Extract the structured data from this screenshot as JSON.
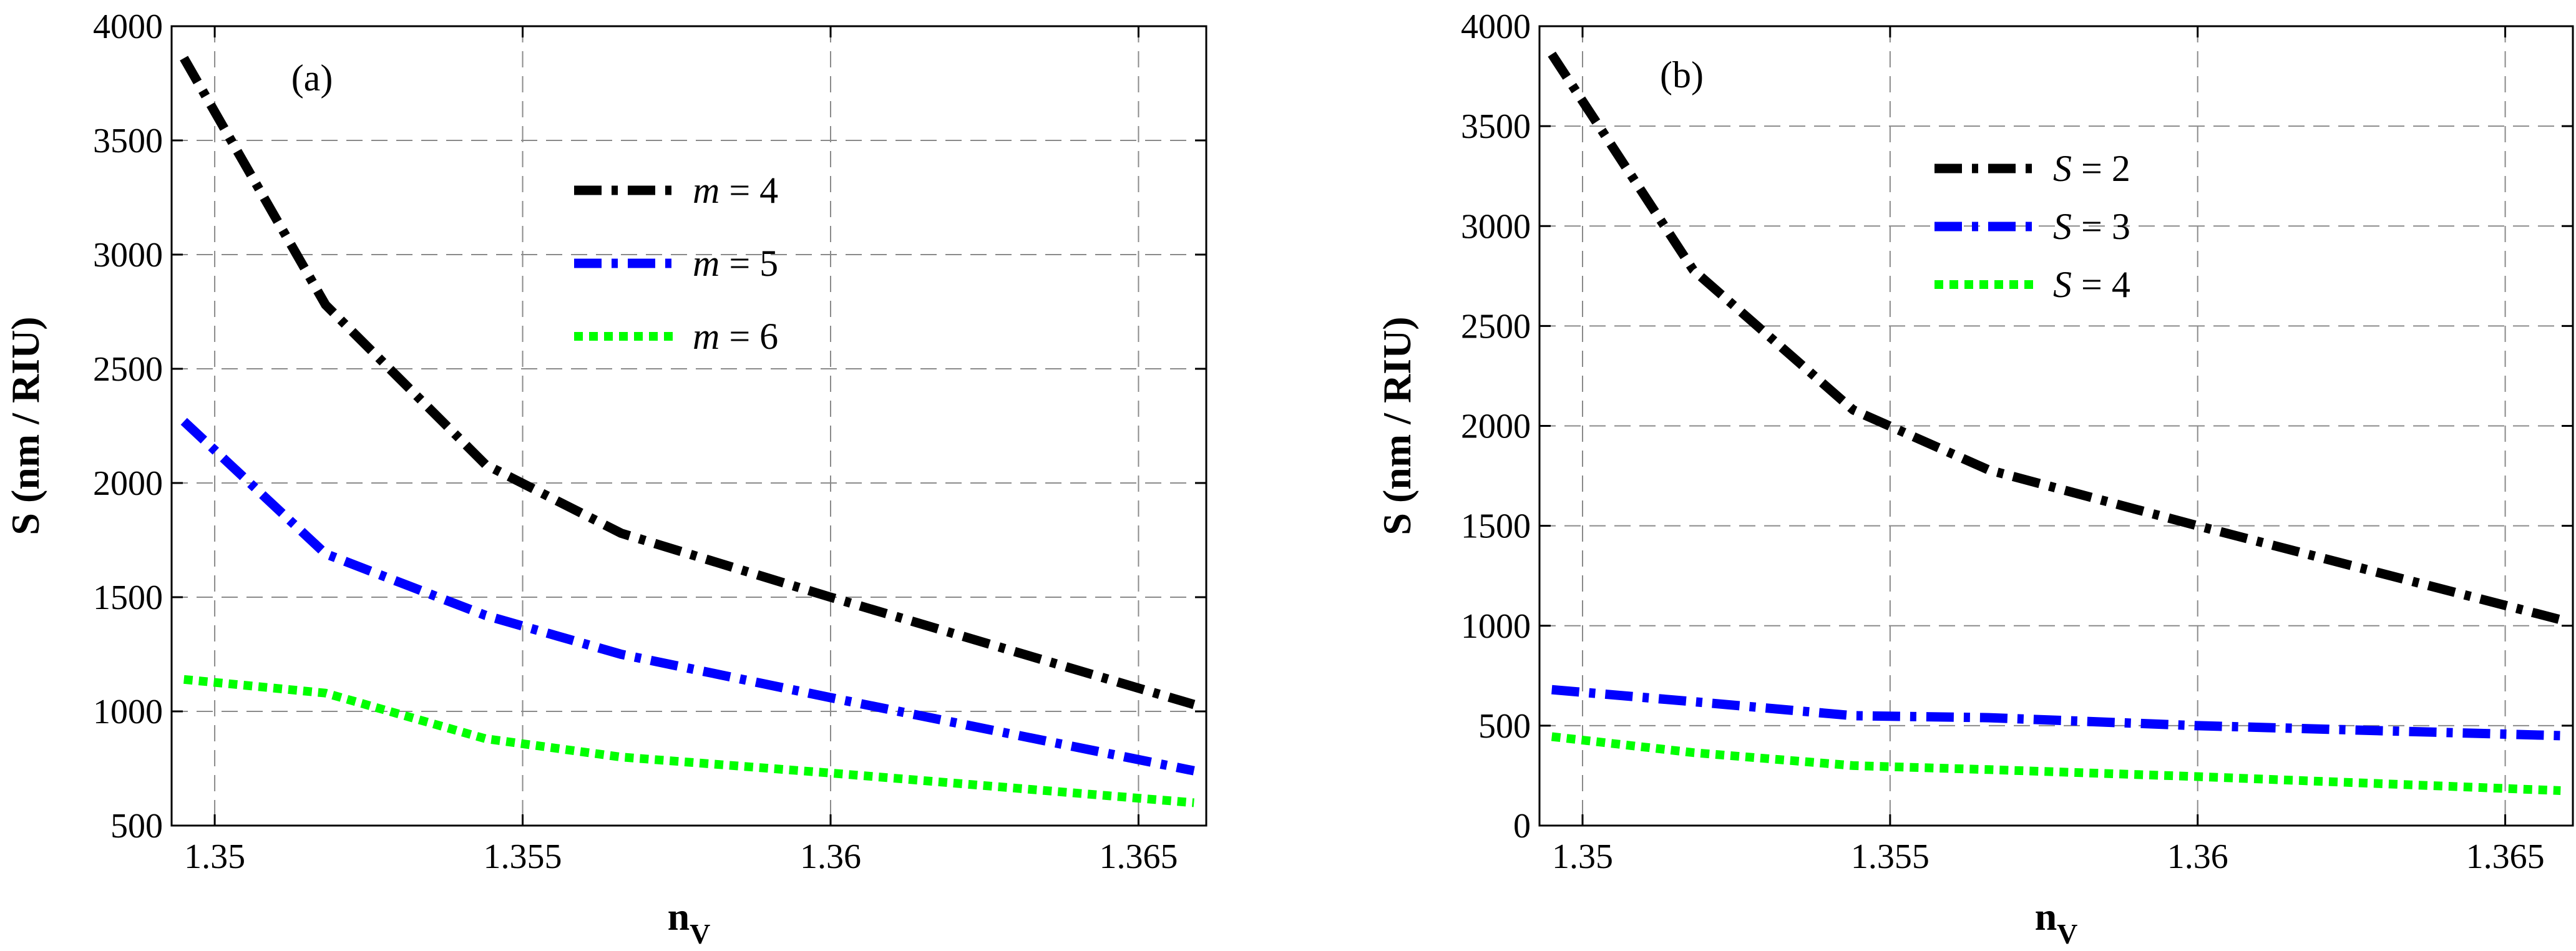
{
  "chart_data": [
    {
      "type": "line",
      "panel_label": "(a)",
      "xlabel": "n",
      "xlabel_sub": "V",
      "ylabel": "S (nm / RIU)",
      "xlim": [
        1.3493,
        1.3661
      ],
      "ylim": [
        500,
        4000
      ],
      "xticks": [
        1.35,
        1.355,
        1.36,
        1.365
      ],
      "xtick_labels": [
        "1.35",
        "1.355",
        "1.36",
        "1.365"
      ],
      "yticks": [
        500,
        1000,
        1500,
        2000,
        2500,
        3000,
        3500,
        4000
      ],
      "ytick_labels": [
        "500",
        "1000",
        "1500",
        "2000",
        "2500",
        "3000",
        "3500",
        "4000"
      ],
      "grid": true,
      "legend_position": "upper-center",
      "legend_var": "m",
      "series": [
        {
          "name": "m = 4",
          "legend_value": "= 4",
          "color": "#000000",
          "style": "dashdot",
          "x": [
            1.3495,
            1.3518,
            1.3544,
            1.3566,
            1.36,
            1.3659
          ],
          "values": [
            3860,
            2780,
            2080,
            1780,
            1500,
            1030
          ]
        },
        {
          "name": "m = 5",
          "legend_value": "= 5",
          "color": "#0000ff",
          "style": "dashdot",
          "x": [
            1.3495,
            1.3518,
            1.3544,
            1.3566,
            1.36,
            1.3659
          ],
          "values": [
            2270,
            1690,
            1420,
            1250,
            1060,
            740
          ]
        },
        {
          "name": "m = 6",
          "legend_value": "= 6",
          "color": "#00ff00",
          "style": "dotted",
          "x": [
            1.3495,
            1.3518,
            1.3544,
            1.3566,
            1.36,
            1.3659
          ],
          "values": [
            1140,
            1080,
            880,
            800,
            730,
            600
          ]
        }
      ]
    },
    {
      "type": "line",
      "panel_label": "(b)",
      "xlabel": "n",
      "xlabel_sub": "V",
      "ylabel": "S (nm / RIU)",
      "xlim": [
        1.3493,
        1.3661
      ],
      "ylim": [
        0,
        4000
      ],
      "xticks": [
        1.35,
        1.355,
        1.36,
        1.365
      ],
      "xtick_labels": [
        "1.35",
        "1.355",
        "1.36",
        "1.365"
      ],
      "yticks": [
        0,
        500,
        1000,
        1500,
        2000,
        2500,
        3000,
        3500,
        4000
      ],
      "ytick_labels": [
        "0",
        "500",
        "1000",
        "1500",
        "2000",
        "2500",
        "3000",
        "3500",
        "4000"
      ],
      "grid": true,
      "legend_position": "upper-center",
      "legend_var": "S",
      "series": [
        {
          "name": "S = 2",
          "legend_value": "= 2",
          "color": "#000000",
          "style": "dashdot",
          "x": [
            1.3495,
            1.3518,
            1.3544,
            1.3566,
            1.36,
            1.3659
          ],
          "values": [
            3860,
            2780,
            2080,
            1780,
            1500,
            1030
          ]
        },
        {
          "name": "S = 3",
          "legend_value": "= 3",
          "color": "#0000ff",
          "style": "dashdot",
          "x": [
            1.3495,
            1.3518,
            1.3544,
            1.3566,
            1.36,
            1.3659
          ],
          "values": [
            680,
            620,
            550,
            540,
            500,
            450
          ]
        },
        {
          "name": "S = 4",
          "legend_value": "= 4",
          "color": "#00ff00",
          "style": "dotted",
          "x": [
            1.3495,
            1.3518,
            1.3544,
            1.3566,
            1.36,
            1.3659
          ],
          "values": [
            445,
            365,
            300,
            280,
            245,
            175
          ]
        }
      ]
    }
  ]
}
